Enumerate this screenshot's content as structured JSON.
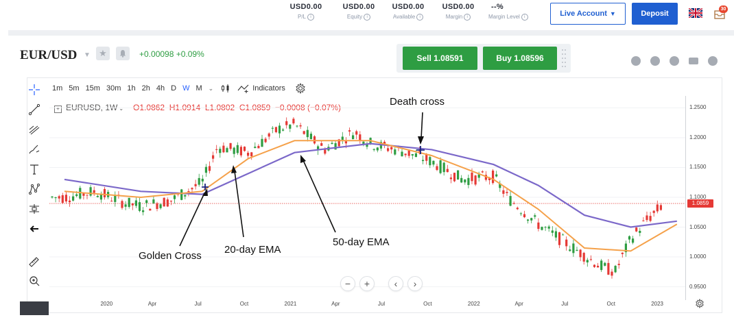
{
  "account": {
    "stats": [
      {
        "value": "USD0.00",
        "label": "P/L"
      },
      {
        "value": "USD0.00",
        "label": "Equity"
      },
      {
        "value": "USD0.00",
        "label": "Available"
      },
      {
        "value": "USD0.00",
        "label": "Margin"
      },
      {
        "value": "--%",
        "label": "Margin Level"
      }
    ],
    "live_account_label": "Live Account",
    "deposit_label": "Deposit",
    "notification_count": "30"
  },
  "instrument": {
    "symbol": "EUR/USD",
    "change": "+0.00098 +0.09%",
    "sell_label": "Sell 1.08591",
    "buy_label": "Buy 1.08596"
  },
  "toolbar": {
    "timeframes": [
      "1m",
      "5m",
      "15m",
      "30m",
      "1h",
      "2h",
      "4h",
      "D",
      "W",
      "M"
    ],
    "active_timeframe": "W",
    "indicators_label": "Indicators"
  },
  "legend": {
    "series": "EURUSD, 1W",
    "open": "O1.0862",
    "high": "H1.0914",
    "low": "L1.0802",
    "close": "C1.0859",
    "change": "−0.0008 (−0.07%)"
  },
  "annotations": {
    "death_cross": "Death cross",
    "golden_cross": "Golden Cross",
    "ema20": "20-day EMA",
    "ema50": "50-day EMA"
  },
  "colors": {
    "up": "#26a69a",
    "up_candle": "#2e9d42",
    "down": "#e53935",
    "ema20": "#f5a14a",
    "ema50": "#7b68c9",
    "accent": "#1f5fd1"
  },
  "chart_data": {
    "type": "line",
    "series": [
      {
        "name": "EURUSD, 1W",
        "x": [
          "2019-10",
          "2019-12",
          "2020-02",
          "2020-03",
          "2020-05",
          "2020-07",
          "2020-08",
          "2020-10",
          "2020-12",
          "2021-01",
          "2021-03",
          "2021-05",
          "2021-06",
          "2021-08",
          "2021-10",
          "2021-12",
          "2022-02",
          "2022-03",
          "2022-05",
          "2022-07",
          "2022-09",
          "2022-10",
          "2022-11",
          "2022-12",
          "2023-01",
          "2023-02"
        ],
        "values": [
          1.1,
          1.11,
          1.09,
          1.085,
          1.095,
          1.125,
          1.185,
          1.175,
          1.215,
          1.222,
          1.18,
          1.21,
          1.19,
          1.178,
          1.16,
          1.13,
          1.135,
          1.1,
          1.055,
          1.02,
          0.985,
          0.975,
          1.03,
          1.06,
          1.085,
          1.086
        ]
      },
      {
        "name": "",
        "x": [
          "2019-10",
          "2020-03",
          "2020-07",
          "2020-10",
          "2021-01",
          "2021-06",
          "2021-10",
          "2022-02",
          "2022-05",
          "2022-08",
          "2022-11",
          "2023-02"
        ],
        "values": [
          1.11,
          1.1,
          1.11,
          1.165,
          1.195,
          1.195,
          1.17,
          1.13,
          1.08,
          1.015,
          1.01,
          1.055
        ]
      },
      {
        "name": "",
        "x": [
          "2019-10",
          "2020-03",
          "2020-07",
          "2020-10",
          "2021-01",
          "2021-06",
          "2021-10",
          "2022-02",
          "2022-05",
          "2022-08",
          "2022-11",
          "2023-02"
        ],
        "values": [
          1.13,
          1.11,
          1.105,
          1.14,
          1.175,
          1.19,
          1.18,
          1.155,
          1.12,
          1.07,
          1.05,
          1.06
        ]
      }
    ],
    "ylim": [
      0.93,
      1.27
    ],
    "yticks": [
      "1.2500",
      "1.2000",
      "1.1500",
      "1.1000",
      "1.0500",
      "1.0000",
      "0.9500"
    ],
    "xticks": [
      "2020",
      "Apr",
      "Jul",
      "Oct",
      "2021",
      "Apr",
      "Jul",
      "Oct",
      "2022",
      "Apr",
      "Jul",
      "Oct",
      "2023"
    ],
    "last_price_label": "1.0859"
  }
}
